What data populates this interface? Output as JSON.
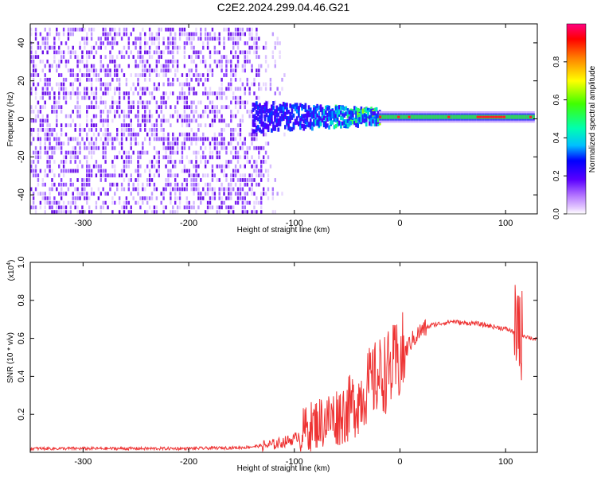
{
  "title": "C2E2.2024.299.04.46.G21",
  "chart_data": [
    {
      "type": "heatmap",
      "title": "C2E2.2024.299.04.46.G21",
      "xlabel": "Height of straight line (km)",
      "ylabel": "Frequency (Hz)",
      "xlim": [
        -350,
        130
      ],
      "ylim": [
        -50,
        50
      ],
      "xticks": [
        -300,
        -200,
        -100,
        0,
        100
      ],
      "yticks": [
        -40,
        -20,
        0,
        20,
        40
      ],
      "noise_region_x": [
        -350,
        -110
      ],
      "signal_center_hz": 1,
      "colorbar": {
        "label": "Normalized spectral amplitude",
        "range": [
          0.0,
          1.0
        ],
        "ticks": [
          0.0,
          0.2,
          0.4,
          0.6,
          0.8
        ]
      }
    },
    {
      "type": "line",
      "xlabel": "Height of straight line (km)",
      "ylabel": "SNR (10 * v/v)",
      "multiplier_base": "(x10",
      "multiplier_exp": "4",
      "multiplier_close": ")",
      "xlim": [
        -350,
        130
      ],
      "ylim": [
        0.0,
        1.0
      ],
      "xticks": [
        -300,
        -200,
        -100,
        0,
        100
      ],
      "yticks": [
        0.2,
        0.4,
        0.6,
        0.8,
        1.0
      ],
      "series": [
        {
          "name": "SNR",
          "color": "#ee3333",
          "x": [
            -350,
            -300,
            -200,
            -150,
            -120,
            -100,
            -90,
            -80,
            -70,
            -60,
            -50,
            -40,
            -30,
            -20,
            -10,
            0,
            10,
            20,
            30,
            40,
            50,
            60,
            70,
            80,
            90,
            100,
            110,
            120,
            130
          ],
          "y": [
            0.02,
            0.02,
            0.02,
            0.025,
            0.04,
            0.07,
            0.12,
            0.15,
            0.17,
            0.19,
            0.22,
            0.27,
            0.35,
            0.4,
            0.43,
            0.48,
            0.58,
            0.64,
            0.67,
            0.68,
            0.69,
            0.68,
            0.68,
            0.67,
            0.66,
            0.65,
            0.63,
            0.61,
            0.59
          ]
        }
      ]
    }
  ]
}
